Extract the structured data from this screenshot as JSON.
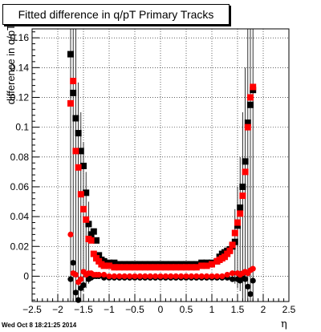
{
  "chart_data": {
    "type": "scatter",
    "title": "Fitted difference in q/pT  Primary Tracks",
    "xlabel": "η",
    "ylabel": "difference in q/pT",
    "xlim": [
      -2.5,
      2.5
    ],
    "ylim": [
      -0.017,
      0.166
    ],
    "xticks": [
      -2.5,
      -2,
      -1.5,
      -1,
      -0.5,
      0,
      0.5,
      1,
      1.5,
      2,
      2.5
    ],
    "xtick_labels": [
      "−2.5",
      "−2",
      "−1.5",
      "−1",
      "−0.5",
      "0",
      "0.5",
      "1",
      "1.5",
      "2",
      "2.5"
    ],
    "yticks": [
      0,
      0.02,
      0.04,
      0.06,
      0.08,
      0.1,
      0.12,
      0.14,
      0.16
    ],
    "ytick_labels": [
      "0",
      "0.02",
      "0.04",
      "0.06",
      "0.08",
      "0.1",
      "0.12",
      "0.14",
      "0.16"
    ],
    "grid": true,
    "series": [
      {
        "marker": "square",
        "color": "#000000",
        "points": [
          [
            -1.75,
            0.149
          ],
          [
            -1.7,
            0.123
          ],
          [
            -1.65,
            0.106
          ],
          [
            -1.6,
            0.096
          ],
          [
            -1.55,
            0.084
          ],
          [
            -1.5,
            0.074
          ],
          [
            -1.45,
            0.056
          ],
          [
            -1.4,
            0.035
          ],
          [
            -1.35,
            0.028
          ],
          [
            -1.3,
            0.03
          ],
          [
            -1.25,
            0.024
          ],
          [
            -1.2,
            0.014
          ],
          [
            -1.15,
            0.011
          ],
          [
            -1.1,
            0.01
          ],
          [
            -1.0,
            0.009
          ],
          [
            -0.9,
            0.009
          ],
          [
            -0.8,
            0.008
          ],
          [
            -0.7,
            0.008
          ],
          [
            -0.6,
            0.008
          ],
          [
            -0.5,
            0.008
          ],
          [
            -0.4,
            0.008
          ],
          [
            -0.3,
            0.008
          ],
          [
            -0.2,
            0.008
          ],
          [
            -0.1,
            0.008
          ],
          [
            0.0,
            0.008
          ],
          [
            0.1,
            0.008
          ],
          [
            0.2,
            0.008
          ],
          [
            0.3,
            0.008
          ],
          [
            0.4,
            0.008
          ],
          [
            0.5,
            0.008
          ],
          [
            0.6,
            0.008
          ],
          [
            0.7,
            0.008
          ],
          [
            0.8,
            0.009
          ],
          [
            0.9,
            0.009
          ],
          [
            1.0,
            0.009
          ],
          [
            1.1,
            0.01
          ],
          [
            1.15,
            0.013
          ],
          [
            1.2,
            0.015
          ],
          [
            1.25,
            0.016
          ],
          [
            1.3,
            0.017
          ],
          [
            1.35,
            0.018
          ],
          [
            1.4,
            0.02
          ],
          [
            1.45,
            0.023
          ],
          [
            1.5,
            0.034
          ],
          [
            1.55,
            0.046
          ],
          [
            1.6,
            0.06
          ],
          [
            1.65,
            0.077
          ],
          [
            1.7,
            0.103
          ],
          [
            1.75,
            0.115
          ],
          [
            1.8,
            0.125
          ]
        ]
      },
      {
        "marker": "square",
        "color": "#ff0000",
        "points": [
          [
            -1.75,
            0.116
          ],
          [
            -1.7,
            0.131
          ],
          [
            -1.65,
            0.084
          ],
          [
            -1.6,
            0.073
          ],
          [
            -1.55,
            0.055
          ],
          [
            -1.5,
            0.045
          ],
          [
            -1.45,
            0.038
          ],
          [
            -1.4,
            0.025
          ],
          [
            -1.35,
            0.024
          ],
          [
            -1.3,
            0.015
          ],
          [
            -1.25,
            0.012
          ],
          [
            -1.2,
            0.01
          ],
          [
            -1.15,
            0.008
          ],
          [
            -1.1,
            0.007
          ],
          [
            -1.0,
            0.007
          ],
          [
            -0.9,
            0.006
          ],
          [
            -0.8,
            0.006
          ],
          [
            -0.7,
            0.006
          ],
          [
            -0.6,
            0.006
          ],
          [
            -0.5,
            0.006
          ],
          [
            -0.4,
            0.006
          ],
          [
            -0.3,
            0.006
          ],
          [
            -0.2,
            0.006
          ],
          [
            -0.1,
            0.006
          ],
          [
            0.0,
            0.006
          ],
          [
            0.1,
            0.006
          ],
          [
            0.2,
            0.006
          ],
          [
            0.3,
            0.006
          ],
          [
            0.4,
            0.006
          ],
          [
            0.5,
            0.006
          ],
          [
            0.6,
            0.006
          ],
          [
            0.7,
            0.006
          ],
          [
            0.8,
            0.007
          ],
          [
            0.9,
            0.007
          ],
          [
            1.0,
            0.008
          ],
          [
            1.1,
            0.01
          ],
          [
            1.15,
            0.011
          ],
          [
            1.2,
            0.012
          ],
          [
            1.25,
            0.013
          ],
          [
            1.3,
            0.015
          ],
          [
            1.35,
            0.017
          ],
          [
            1.4,
            0.021
          ],
          [
            1.45,
            0.029
          ],
          [
            1.5,
            0.036
          ],
          [
            1.55,
            0.042
          ],
          [
            1.6,
            0.054
          ],
          [
            1.65,
            0.07
          ],
          [
            1.7,
            0.1
          ],
          [
            1.75,
            0.12
          ],
          [
            1.8,
            0.127
          ]
        ]
      },
      {
        "marker": "circle",
        "color": "#000000",
        "points": [
          [
            -1.75,
            -0.002
          ],
          [
            -1.7,
            0.009
          ],
          [
            -1.65,
            -0.011
          ],
          [
            -1.6,
            -0.016
          ],
          [
            -1.55,
            -0.008
          ],
          [
            -1.5,
            -0.006
          ],
          [
            -1.45,
            0.001
          ],
          [
            -1.4,
            -0.002
          ],
          [
            -1.35,
            -0.001
          ],
          [
            -1.3,
            0.0
          ],
          [
            -1.25,
            0.0
          ],
          [
            -1.2,
            0.0
          ],
          [
            -1.1,
            -0.001
          ],
          [
            -1.0,
            -0.001
          ],
          [
            -0.9,
            -0.001
          ],
          [
            -0.8,
            -0.001
          ],
          [
            -0.7,
            -0.001
          ],
          [
            -0.6,
            -0.001
          ],
          [
            -0.5,
            -0.001
          ],
          [
            -0.4,
            -0.001
          ],
          [
            -0.3,
            -0.001
          ],
          [
            -0.2,
            -0.001
          ],
          [
            -0.1,
            -0.001
          ],
          [
            0.0,
            -0.001
          ],
          [
            0.1,
            -0.001
          ],
          [
            0.2,
            -0.001
          ],
          [
            0.3,
            -0.001
          ],
          [
            0.4,
            -0.001
          ],
          [
            0.5,
            -0.001
          ],
          [
            0.6,
            -0.001
          ],
          [
            0.7,
            -0.001
          ],
          [
            0.8,
            -0.001
          ],
          [
            0.9,
            -0.001
          ],
          [
            1.0,
            -0.001
          ],
          [
            1.1,
            -0.001
          ],
          [
            1.2,
            -0.001
          ],
          [
            1.3,
            -0.001
          ],
          [
            1.4,
            -0.002
          ],
          [
            1.5,
            -0.002
          ],
          [
            1.55,
            -0.003
          ],
          [
            1.6,
            -0.001
          ],
          [
            1.65,
            -0.002
          ],
          [
            1.7,
            -0.007
          ],
          [
            1.75,
            -0.012
          ],
          [
            1.8,
            -0.003
          ]
        ]
      },
      {
        "marker": "circle",
        "color": "#ff0000",
        "points": [
          [
            -1.75,
            0.028
          ],
          [
            -1.7,
            0.002
          ],
          [
            -1.65,
            0.001
          ],
          [
            -1.6,
            -0.004
          ],
          [
            -1.55,
            -0.002
          ],
          [
            -1.5,
            0.003
          ],
          [
            -1.45,
            0.001
          ],
          [
            -1.4,
            0.002
          ],
          [
            -1.35,
            0.002
          ],
          [
            -1.3,
            0.001
          ],
          [
            -1.25,
            0.001
          ],
          [
            -1.2,
            0.001
          ],
          [
            -1.1,
            0.001
          ],
          [
            -1.0,
            0.0
          ],
          [
            -0.9,
            0.0
          ],
          [
            -0.8,
            0.0
          ],
          [
            -0.7,
            0.0
          ],
          [
            -0.6,
            0.0
          ],
          [
            -0.5,
            0.0
          ],
          [
            -0.4,
            0.0
          ],
          [
            -0.3,
            0.0
          ],
          [
            -0.2,
            0.0
          ],
          [
            -0.1,
            0.0
          ],
          [
            0.0,
            0.0
          ],
          [
            0.1,
            0.0
          ],
          [
            0.2,
            0.0
          ],
          [
            0.3,
            0.0
          ],
          [
            0.4,
            0.0
          ],
          [
            0.5,
            0.0
          ],
          [
            0.6,
            0.0
          ],
          [
            0.7,
            0.0
          ],
          [
            0.8,
            0.0
          ],
          [
            0.9,
            0.0
          ],
          [
            1.0,
            0.0
          ],
          [
            1.1,
            0.0
          ],
          [
            1.2,
            0.0
          ],
          [
            1.3,
            0.001
          ],
          [
            1.4,
            0.002
          ],
          [
            1.5,
            0.002
          ],
          [
            1.55,
            0.001
          ],
          [
            1.6,
            0.002
          ],
          [
            1.65,
            0.003
          ],
          [
            1.7,
            0.002
          ],
          [
            1.75,
            0.004
          ],
          [
            1.8,
            0.005
          ]
        ]
      }
    ],
    "error_bars": [
      {
        "x": -1.75,
        "ylow": -0.017,
        "yhigh": 0.166
      },
      {
        "x": -1.7,
        "ylow": -0.017,
        "yhigh": 0.166
      },
      {
        "x": -1.65,
        "ylow": -0.017,
        "yhigh": 0.166
      },
      {
        "x": -1.6,
        "ylow": -0.017,
        "yhigh": 0.13
      },
      {
        "x": -1.55,
        "ylow": -0.017,
        "yhigh": 0.11
      },
      {
        "x": -1.5,
        "ylow": -0.01,
        "yhigh": 0.09
      },
      {
        "x": -1.45,
        "ylow": -0.008,
        "yhigh": 0.07
      },
      {
        "x": -1.4,
        "ylow": -0.005,
        "yhigh": 0.05
      },
      {
        "x": 1.45,
        "ylow": -0.005,
        "yhigh": 0.045
      },
      {
        "x": 1.5,
        "ylow": -0.008,
        "yhigh": 0.06
      },
      {
        "x": 1.55,
        "ylow": -0.01,
        "yhigh": 0.08
      },
      {
        "x": 1.6,
        "ylow": -0.017,
        "yhigh": 0.11
      },
      {
        "x": 1.65,
        "ylow": -0.017,
        "yhigh": 0.14
      },
      {
        "x": 1.7,
        "ylow": -0.017,
        "yhigh": 0.166
      },
      {
        "x": 1.75,
        "ylow": -0.017,
        "yhigh": 0.166
      },
      {
        "x": 1.8,
        "ylow": -0.017,
        "yhigh": 0.166
      }
    ]
  },
  "timestamp": "Wed Oct  8 18:21:25 2014"
}
